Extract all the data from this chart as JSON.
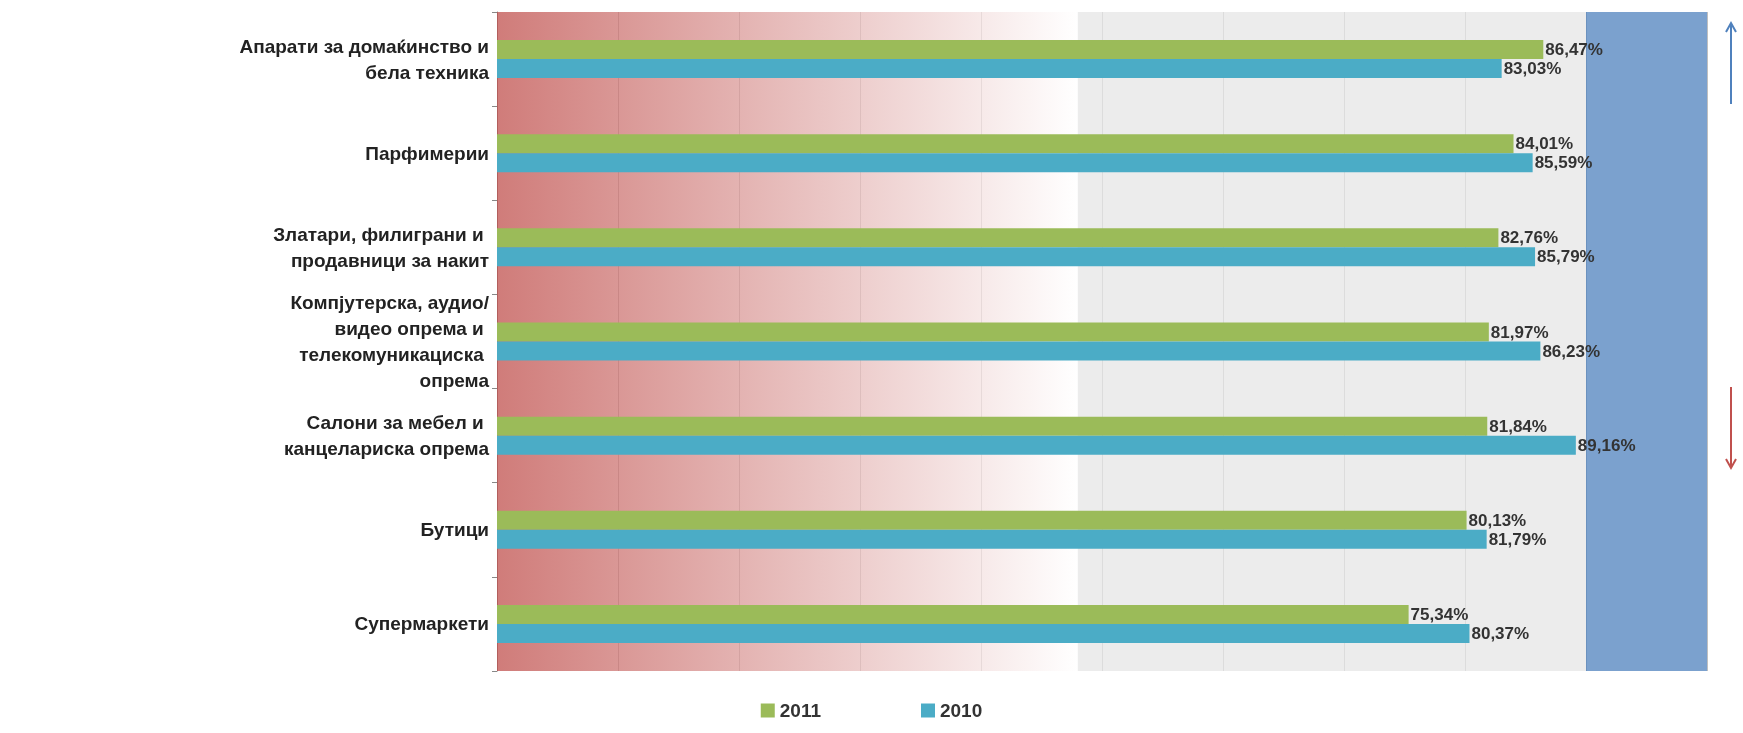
{
  "chart_data": {
    "type": "bar",
    "orientation": "horizontal",
    "categories": [
      "Апарати за домаќинство и бела техника",
      "Парфимерии",
      "Златари, филиграни и продавници за накит",
      "Компјутерска, аудио/видео опрема и телекомуникациска опрема",
      "Салони за мебел и канцелариска опрема",
      "Бутици",
      "Супермаркети"
    ],
    "series": [
      {
        "name": "2011",
        "color": "#9bbb59",
        "values": [
          86.47,
          84.01,
          82.76,
          81.97,
          81.84,
          80.13,
          75.34
        ],
        "value_labels": [
          "86,47%",
          "84,01%",
          "82,76%",
          "81,97%",
          "81,84%",
          "80,13%",
          "75,34%"
        ]
      },
      {
        "name": "2010",
        "color": "#4bacc6",
        "values": [
          83.03,
          85.59,
          85.79,
          86.23,
          89.16,
          81.79,
          80.37
        ],
        "value_labels": [
          "83,03%",
          "85,59%",
          "85,79%",
          "86,23%",
          "89,16%",
          "81,79%",
          "80,37%"
        ]
      }
    ],
    "xlim": [
      0,
      100
    ],
    "xticks": [
      {
        "value": 0,
        "label": null
      },
      {
        "value": 10,
        "label": null
      },
      {
        "value": 20,
        "label": null
      },
      {
        "value": 30,
        "label": null
      },
      {
        "value": 40,
        "label": null
      },
      {
        "value": 50,
        "label": null
      },
      {
        "value": 60,
        "label": null
      },
      {
        "value": 70,
        "label": null
      },
      {
        "value": 80,
        "label": null
      },
      {
        "value": 90,
        "label": null
      },
      {
        "value": 100,
        "label": null
      }
    ],
    "tick_labels": "y",
    "grid": "x",
    "legend": "bottom",
    "bands": [
      {
        "axis": "x",
        "from": 0,
        "to": 48,
        "color": "#c0504d"
      },
      {
        "axis": "x",
        "from": 48,
        "to": 90,
        "color": "#e6e6e6"
      },
      {
        "axis": "x",
        "from": 90,
        "to": 100,
        "color": "#4f81bd"
      }
    ]
  }
}
